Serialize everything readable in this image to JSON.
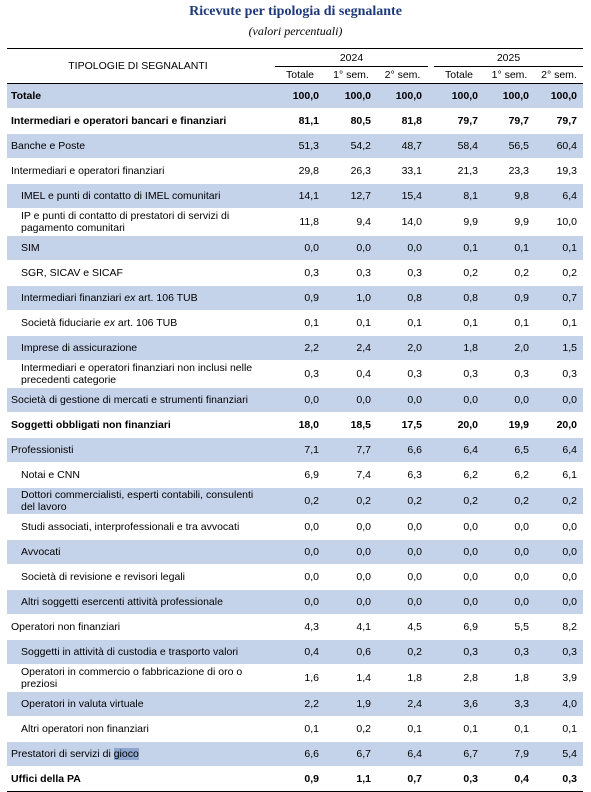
{
  "title": "Ricevute per tipologia di segnalante",
  "subtitle": "(valori percentuali)",
  "header": {
    "label": "TIPOLOGIE DI SEGNALANTI",
    "years": [
      "2024",
      "2025"
    ],
    "cols": [
      "Totale",
      "1° sem.",
      "2° sem.",
      "Totale",
      "1° sem.",
      "2° sem."
    ]
  },
  "rows": [
    {
      "label": "Totale",
      "values": [
        "100,0",
        "100,0",
        "100,0",
        "100,0",
        "100,0",
        "100,0"
      ]
    },
    {
      "label": "Intermediari e operatori bancari e finanziari",
      "values": [
        "81,1",
        "80,5",
        "81,8",
        "79,7",
        "79,7",
        "79,7"
      ]
    },
    {
      "label": "Banche e Poste",
      "values": [
        "51,3",
        "54,2",
        "48,7",
        "58,4",
        "56,5",
        "60,4"
      ]
    },
    {
      "label": "Intermediari e operatori finanziari",
      "values": [
        "29,8",
        "26,3",
        "33,1",
        "21,3",
        "23,3",
        "19,3"
      ]
    },
    {
      "label": "IMEL e punti di contatto di IMEL comunitari",
      "values": [
        "14,1",
        "12,7",
        "15,4",
        "8,1",
        "9,8",
        "6,4"
      ]
    },
    {
      "label": "IP e punti di contatto di prestatori di servizi di pagamento comunitari",
      "values": [
        "11,8",
        "9,4",
        "14,0",
        "9,9",
        "9,9",
        "10,0"
      ]
    },
    {
      "label": "SIM",
      "values": [
        "0,0",
        "0,0",
        "0,0",
        "0,1",
        "0,1",
        "0,1"
      ]
    },
    {
      "label": "SGR, SICAV e SICAF",
      "values": [
        "0,3",
        "0,3",
        "0,3",
        "0,2",
        "0,2",
        "0,2"
      ]
    },
    {
      "label_parts": [
        "Intermediari finanziari ",
        "ex",
        " art. 106 TUB"
      ],
      "values": [
        "0,9",
        "1,0",
        "0,8",
        "0,8",
        "0,9",
        "0,7"
      ]
    },
    {
      "label_parts": [
        "Società fiduciarie ",
        "ex",
        " art. 106 TUB"
      ],
      "values": [
        "0,1",
        "0,1",
        "0,1",
        "0,1",
        "0,1",
        "0,1"
      ]
    },
    {
      "label": "Imprese di assicurazione",
      "values": [
        "2,2",
        "2,4",
        "2,0",
        "1,8",
        "2,0",
        "1,5"
      ]
    },
    {
      "label": "Intermediari e operatori finanziari non inclusi nelle precedenti categorie",
      "values": [
        "0,3",
        "0,4",
        "0,3",
        "0,3",
        "0,3",
        "0,3"
      ]
    },
    {
      "label": "Società di gestione di mercati e strumenti finanziari",
      "values": [
        "0,0",
        "0,0",
        "0,0",
        "0,0",
        "0,0",
        "0,0"
      ]
    },
    {
      "label": "Soggetti obbligati non finanziari",
      "values": [
        "18,0",
        "18,5",
        "17,5",
        "20,0",
        "19,9",
        "20,0"
      ]
    },
    {
      "label": "Professionisti",
      "values": [
        "7,1",
        "7,7",
        "6,6",
        "6,4",
        "6,5",
        "6,4"
      ]
    },
    {
      "label": "Notai e CNN",
      "values": [
        "6,9",
        "7,4",
        "6,3",
        "6,2",
        "6,2",
        "6,1"
      ]
    },
    {
      "label": "Dottori commercialisti, esperti contabili, consulenti del lavoro",
      "values": [
        "0,2",
        "0,2",
        "0,2",
        "0,2",
        "0,2",
        "0,2"
      ]
    },
    {
      "label": "Studi associati, interprofessionali e tra avvocati",
      "values": [
        "0,0",
        "0,0",
        "0,0",
        "0,0",
        "0,0",
        "0,0"
      ]
    },
    {
      "label": "Avvocati",
      "values": [
        "0,0",
        "0,0",
        "0,0",
        "0,0",
        "0,0",
        "0,0"
      ]
    },
    {
      "label": "Società di revisione e revisori legali",
      "values": [
        "0,0",
        "0,0",
        "0,0",
        "0,0",
        "0,0",
        "0,0"
      ]
    },
    {
      "label": "Altri soggetti esercenti attività professionale",
      "values": [
        "0,0",
        "0,0",
        "0,0",
        "0,0",
        "0,0",
        "0,0"
      ]
    },
    {
      "label": "Operatori non finanziari",
      "values": [
        "4,3",
        "4,1",
        "4,5",
        "6,9",
        "5,5",
        "8,2"
      ]
    },
    {
      "label": "Soggetti in attività di custodia e trasporto valori",
      "values": [
        "0,4",
        "0,6",
        "0,2",
        "0,3",
        "0,3",
        "0,3"
      ]
    },
    {
      "label": "Operatori in commercio o fabbricazione di oro o preziosi",
      "values": [
        "1,6",
        "1,4",
        "1,8",
        "2,8",
        "1,8",
        "3,9"
      ]
    },
    {
      "label": "Operatori in valuta virtuale",
      "values": [
        "2,2",
        "1,9",
        "2,4",
        "3,6",
        "3,3",
        "4,0"
      ]
    },
    {
      "label": "Altri operatori non finanziari",
      "values": [
        "0,1",
        "0,2",
        "0,1",
        "0,1",
        "0,1",
        "0,1"
      ]
    },
    {
      "label_parts": [
        "Prestatori di servizi di ",
        "gioco"
      ],
      "values": [
        "6,6",
        "6,7",
        "6,4",
        "6,7",
        "7,9",
        "5,4"
      ]
    },
    {
      "label": "Uffici della PA",
      "values": [
        "0,9",
        "1,1",
        "0,7",
        "0,3",
        "0,4",
        "0,3"
      ]
    }
  ]
}
